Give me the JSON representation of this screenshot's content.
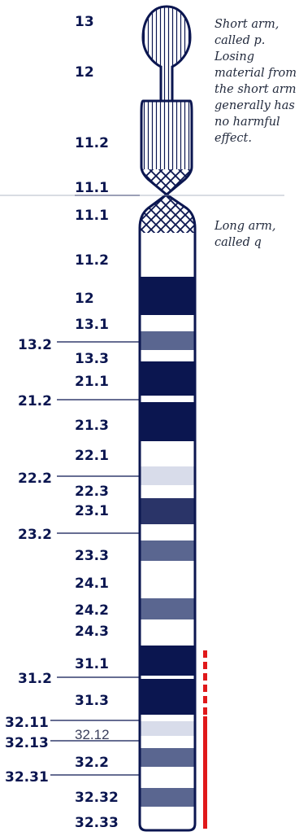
{
  "notes": {
    "short_arm": "Short arm, called p. Losing material from the short arm generally has no harmful effect.",
    "long_arm": "Long arm, called q"
  },
  "colors": {
    "dark_band": "#0b1650",
    "mid_band": "#5a6690",
    "light_band": "#d8dcea",
    "marker": "#e0191b"
  },
  "bands_p": [
    "13",
    "12",
    "11.2",
    "11.1"
  ],
  "bands_q": [
    "11.1",
    "11.2",
    "12",
    "13.1",
    "13.2",
    "13.3",
    "21.1",
    "21.2",
    "21.3",
    "22.1",
    "22.2",
    "22.3",
    "23.1",
    "23.2",
    "23.3",
    "24.1",
    "24.2",
    "24.3",
    "31.1",
    "31.2",
    "31.3",
    "32.11",
    "32.12",
    "32.13",
    "32.2",
    "32.31",
    "32.32",
    "32.33"
  ]
}
